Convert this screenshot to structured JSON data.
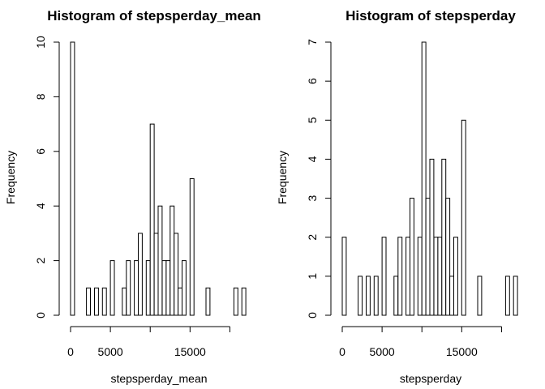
{
  "chart_data": [
    {
      "type": "bar",
      "title": "Histogram of stepsperday_mean",
      "xlabel": "stepsperday_mean",
      "ylabel": "Frequency",
      "xlim": [
        0,
        22500
      ],
      "ylim": [
        0,
        10
      ],
      "xticks": [
        0,
        5000,
        15000
      ],
      "yticks": [
        0,
        2,
        4,
        6,
        8,
        10
      ],
      "bin_width": 500,
      "bins": [
        {
          "x0": 0,
          "x1": 500,
          "count": 10
        },
        {
          "x0": 2000,
          "x1": 2500,
          "count": 1
        },
        {
          "x0": 2500,
          "x1": 3000,
          "count": 0
        },
        {
          "x0": 3000,
          "x1": 3500,
          "count": 1
        },
        {
          "x0": 3500,
          "x1": 4000,
          "count": 0
        },
        {
          "x0": 4000,
          "x1": 4500,
          "count": 1
        },
        {
          "x0": 4500,
          "x1": 5000,
          "count": 0
        },
        {
          "x0": 5000,
          "x1": 5500,
          "count": 2
        },
        {
          "x0": 5500,
          "x1": 6000,
          "count": 0
        },
        {
          "x0": 6000,
          "x1": 6500,
          "count": 0
        },
        {
          "x0": 6500,
          "x1": 7000,
          "count": 1
        },
        {
          "x0": 7000,
          "x1": 7500,
          "count": 2
        },
        {
          "x0": 7500,
          "x1": 8000,
          "count": 0
        },
        {
          "x0": 8000,
          "x1": 8500,
          "count": 2
        },
        {
          "x0": 8500,
          "x1": 9000,
          "count": 3
        },
        {
          "x0": 9000,
          "x1": 9500,
          "count": 0
        },
        {
          "x0": 9500,
          "x1": 10000,
          "count": 2
        },
        {
          "x0": 10000,
          "x1": 10500,
          "count": 7
        },
        {
          "x0": 10500,
          "x1": 11000,
          "count": 3
        },
        {
          "x0": 11000,
          "x1": 11500,
          "count": 4
        },
        {
          "x0": 11500,
          "x1": 12000,
          "count": 2
        },
        {
          "x0": 12000,
          "x1": 12500,
          "count": 2
        },
        {
          "x0": 12500,
          "x1": 13000,
          "count": 4
        },
        {
          "x0": 13000,
          "x1": 13500,
          "count": 3
        },
        {
          "x0": 13500,
          "x1": 14000,
          "count": 1
        },
        {
          "x0": 14000,
          "x1": 14500,
          "count": 2
        },
        {
          "x0": 14500,
          "x1": 15000,
          "count": 0
        },
        {
          "x0": 15000,
          "x1": 15500,
          "count": 5
        },
        {
          "x0": 17000,
          "x1": 17500,
          "count": 1
        },
        {
          "x0": 20500,
          "x1": 21000,
          "count": 1
        },
        {
          "x0": 21000,
          "x1": 21500,
          "count": 0
        },
        {
          "x0": 21500,
          "x1": 22000,
          "count": 1
        }
      ]
    },
    {
      "type": "bar",
      "title": "Histogram of stepsperday",
      "xlabel": "stepsperday",
      "ylabel": "Frequency",
      "xlim": [
        0,
        22500
      ],
      "ylim": [
        0,
        7
      ],
      "xticks": [
        0,
        5000,
        15000
      ],
      "yticks": [
        0,
        1,
        2,
        3,
        4,
        5,
        6,
        7
      ],
      "bin_width": 500,
      "bins": [
        {
          "x0": 0,
          "x1": 500,
          "count": 2
        },
        {
          "x0": 2000,
          "x1": 2500,
          "count": 1
        },
        {
          "x0": 2500,
          "x1": 3000,
          "count": 0
        },
        {
          "x0": 3000,
          "x1": 3500,
          "count": 1
        },
        {
          "x0": 3500,
          "x1": 4000,
          "count": 0
        },
        {
          "x0": 4000,
          "x1": 4500,
          "count": 1
        },
        {
          "x0": 4500,
          "x1": 5000,
          "count": 0
        },
        {
          "x0": 5000,
          "x1": 5500,
          "count": 2
        },
        {
          "x0": 5500,
          "x1": 6000,
          "count": 0
        },
        {
          "x0": 6000,
          "x1": 6500,
          "count": 0
        },
        {
          "x0": 6500,
          "x1": 7000,
          "count": 1
        },
        {
          "x0": 7000,
          "x1": 7500,
          "count": 2
        },
        {
          "x0": 7500,
          "x1": 8000,
          "count": 0
        },
        {
          "x0": 8000,
          "x1": 8500,
          "count": 2
        },
        {
          "x0": 8500,
          "x1": 9000,
          "count": 3
        },
        {
          "x0": 9000,
          "x1": 9500,
          "count": 0
        },
        {
          "x0": 9500,
          "x1": 10000,
          "count": 2
        },
        {
          "x0": 10000,
          "x1": 10500,
          "count": 7
        },
        {
          "x0": 10500,
          "x1": 11000,
          "count": 3
        },
        {
          "x0": 11000,
          "x1": 11500,
          "count": 4
        },
        {
          "x0": 11500,
          "x1": 12000,
          "count": 2
        },
        {
          "x0": 12000,
          "x1": 12500,
          "count": 2
        },
        {
          "x0": 12500,
          "x1": 13000,
          "count": 4
        },
        {
          "x0": 13000,
          "x1": 13500,
          "count": 3
        },
        {
          "x0": 13500,
          "x1": 14000,
          "count": 1
        },
        {
          "x0": 14000,
          "x1": 14500,
          "count": 2
        },
        {
          "x0": 14500,
          "x1": 15000,
          "count": 0
        },
        {
          "x0": 15000,
          "x1": 15500,
          "count": 5
        },
        {
          "x0": 17000,
          "x1": 17500,
          "count": 1
        },
        {
          "x0": 20500,
          "x1": 21000,
          "count": 1
        },
        {
          "x0": 21000,
          "x1": 21500,
          "count": 0
        },
        {
          "x0": 21500,
          "x1": 22000,
          "count": 1
        }
      ]
    }
  ]
}
